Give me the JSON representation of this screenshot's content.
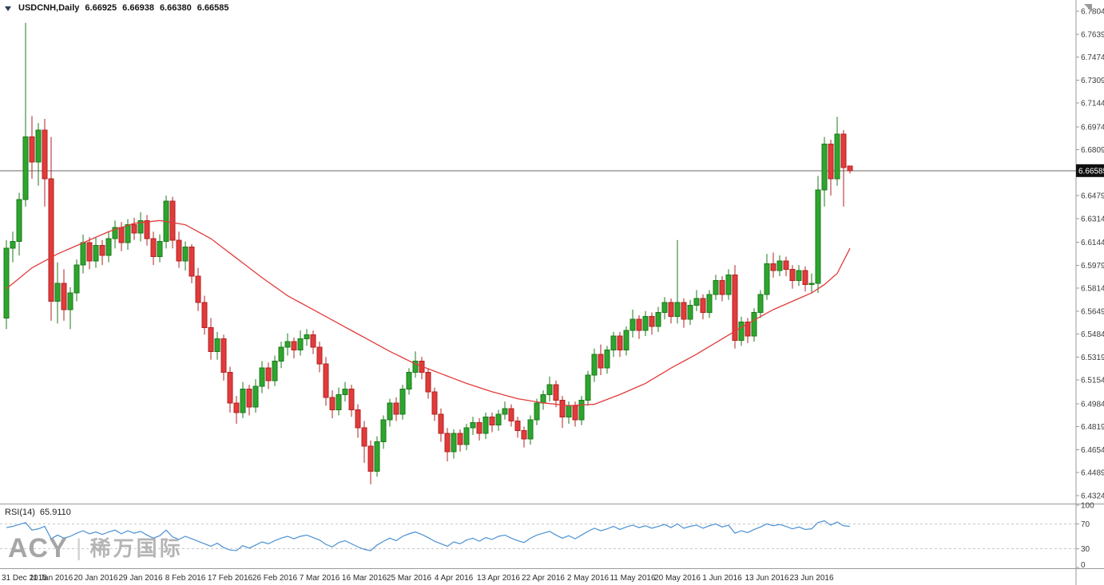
{
  "header": {
    "symbol": "USDCNH,Daily",
    "open": "6.66925",
    "high": "6.66938",
    "low": "6.66380",
    "close": "6.66585"
  },
  "rsi_header": {
    "label": "RSI(14)",
    "value": "65.9110"
  },
  "watermark": {
    "brand": "ACY",
    "separator": "|",
    "cn": "稀万国际"
  },
  "chart_data": {
    "type": "candlestick",
    "title": "USDCNH Daily",
    "symbol": "USDCNH",
    "timeframe": "Daily",
    "legend_position": "none",
    "grid": false,
    "x_labels": [
      "31 Dec 2015",
      "11 Jan 2016",
      "20 Jan 2016",
      "29 Jan 2016",
      "8 Feb 2016",
      "17 Feb 2016",
      "26 Feb 2016",
      "7 Mar 2016",
      "16 Mar 2016",
      "25 Mar 2016",
      "4 Apr 2016",
      "13 Apr 2016",
      "22 Apr 2016",
      "2 May 2016",
      "11 May 2016",
      "20 May 2016",
      "1 Jun 2016",
      "13 Jun 2016",
      "23 Jun 2016"
    ],
    "label_step": 7,
    "y_axis": {
      "min": 6.4324,
      "max": 6.7804,
      "tick_labels": [
        "6.78040",
        "6.76390",
        "6.74740",
        "6.73090",
        "6.71440",
        "6.69740",
        "6.68090",
        "6.64790",
        "6.63140",
        "6.61440",
        "6.59790",
        "6.58140",
        "6.56490",
        "6.54840",
        "6.53190",
        "6.51540",
        "6.49840",
        "6.48190",
        "6.46540",
        "6.44890",
        "6.43240"
      ]
    },
    "current_price": 6.66585,
    "candles": [
      [
        6.56,
        6.616,
        6.552,
        6.61
      ],
      [
        6.61,
        6.622,
        6.6,
        6.615
      ],
      [
        6.615,
        6.65,
        6.605,
        6.645
      ],
      [
        6.645,
        6.772,
        6.64,
        6.69
      ],
      [
        6.69,
        6.705,
        6.66,
        6.672
      ],
      [
        6.672,
        6.7,
        6.655,
        6.695
      ],
      [
        6.695,
        6.703,
        6.64,
        6.66
      ],
      [
        6.66,
        6.69,
        6.558,
        6.572
      ],
      [
        6.572,
        6.6,
        6.556,
        6.585
      ],
      [
        6.585,
        6.595,
        6.558,
        6.566
      ],
      [
        6.566,
        6.582,
        6.552,
        6.578
      ],
      [
        6.578,
        6.602,
        6.572,
        6.598
      ],
      [
        6.598,
        6.62,
        6.592,
        6.614
      ],
      [
        6.614,
        6.618,
        6.595,
        6.601
      ],
      [
        6.601,
        6.618,
        6.596,
        6.612
      ],
      [
        6.612,
        6.616,
        6.598,
        6.605
      ],
      [
        6.605,
        6.622,
        6.6,
        6.617
      ],
      [
        6.617,
        6.63,
        6.61,
        6.625
      ],
      [
        6.625,
        6.629,
        6.608,
        6.614
      ],
      [
        6.614,
        6.631,
        6.609,
        6.627
      ],
      [
        6.627,
        6.632,
        6.616,
        6.621
      ],
      [
        6.621,
        6.636,
        6.615,
        6.63
      ],
      [
        6.63,
        6.634,
        6.612,
        6.617
      ],
      [
        6.617,
        6.622,
        6.598,
        6.604
      ],
      [
        6.604,
        6.62,
        6.6,
        6.615
      ],
      [
        6.615,
        6.648,
        6.61,
        6.644
      ],
      [
        6.644,
        6.647,
        6.61,
        6.616
      ],
      [
        6.616,
        6.622,
        6.596,
        6.601
      ],
      [
        6.601,
        6.615,
        6.594,
        6.611
      ],
      [
        6.611,
        6.613,
        6.585,
        6.59
      ],
      [
        6.59,
        6.596,
        6.565,
        6.571
      ],
      [
        6.571,
        6.576,
        6.548,
        6.553
      ],
      [
        6.553,
        6.56,
        6.53,
        6.536
      ],
      [
        6.536,
        6.55,
        6.53,
        6.545
      ],
      [
        6.545,
        6.548,
        6.515,
        6.521
      ],
      [
        6.521,
        6.525,
        6.492,
        6.499
      ],
      [
        6.499,
        6.504,
        6.484,
        6.492
      ],
      [
        6.492,
        6.514,
        6.488,
        6.509
      ],
      [
        6.509,
        6.512,
        6.49,
        6.496
      ],
      [
        6.496,
        6.516,
        6.492,
        6.511
      ],
      [
        6.511,
        6.529,
        6.506,
        6.524
      ],
      [
        6.524,
        6.528,
        6.509,
        6.515
      ],
      [
        6.515,
        6.533,
        6.511,
        6.529
      ],
      [
        6.529,
        6.543,
        6.524,
        6.539
      ],
      [
        6.539,
        6.549,
        6.533,
        6.543
      ],
      [
        6.543,
        6.546,
        6.531,
        6.537
      ],
      [
        6.537,
        6.551,
        6.533,
        6.545
      ],
      [
        6.545,
        6.552,
        6.54,
        6.548
      ],
      [
        6.548,
        6.551,
        6.534,
        6.539
      ],
      [
        6.539,
        6.543,
        6.521,
        6.527
      ],
      [
        6.527,
        6.532,
        6.497,
        6.503
      ],
      [
        6.503,
        6.508,
        6.488,
        6.494
      ],
      [
        6.494,
        6.51,
        6.49,
        6.505
      ],
      [
        6.505,
        6.514,
        6.5,
        6.509
      ],
      [
        6.509,
        6.512,
        6.489,
        6.494
      ],
      [
        6.494,
        6.498,
        6.474,
        6.481
      ],
      [
        6.481,
        6.486,
        6.456,
        6.468
      ],
      [
        6.468,
        6.472,
        6.4405,
        6.45
      ],
      [
        6.45,
        6.475,
        6.446,
        6.471
      ],
      [
        6.471,
        6.49,
        6.466,
        6.487
      ],
      [
        6.487,
        6.502,
        6.482,
        6.499
      ],
      [
        6.499,
        6.503,
        6.486,
        6.491
      ],
      [
        6.491,
        6.512,
        6.487,
        6.509
      ],
      [
        6.509,
        6.524,
        6.505,
        6.521
      ],
      [
        6.521,
        6.536,
        6.517,
        6.529
      ],
      [
        6.529,
        6.532,
        6.516,
        6.521
      ],
      [
        6.521,
        6.524,
        6.502,
        6.507
      ],
      [
        6.507,
        6.51,
        6.486,
        6.491
      ],
      [
        6.491,
        6.495,
        6.471,
        6.477
      ],
      [
        6.477,
        6.481,
        6.457,
        6.464
      ],
      [
        6.464,
        6.48,
        6.459,
        6.477
      ],
      [
        6.477,
        6.48,
        6.464,
        6.469
      ],
      [
        6.469,
        6.484,
        6.465,
        6.481
      ],
      [
        6.481,
        6.489,
        6.476,
        6.485
      ],
      [
        6.485,
        6.488,
        6.472,
        6.477
      ],
      [
        6.477,
        6.492,
        6.473,
        6.489
      ],
      [
        6.489,
        6.492,
        6.478,
        6.483
      ],
      [
        6.483,
        6.494,
        6.479,
        6.491
      ],
      [
        6.491,
        6.5,
        6.487,
        6.495
      ],
      [
        6.495,
        6.498,
        6.482,
        6.486
      ],
      [
        6.486,
        6.489,
        6.474,
        6.479
      ],
      [
        6.479,
        6.482,
        6.467,
        6.473
      ],
      [
        6.473,
        6.49,
        6.469,
        6.487
      ],
      [
        6.487,
        6.502,
        6.483,
        6.499
      ],
      [
        6.499,
        6.508,
        6.494,
        6.505
      ],
      [
        6.505,
        6.518,
        6.5,
        6.512
      ],
      [
        6.512,
        6.515,
        6.496,
        6.501
      ],
      [
        6.501,
        6.504,
        6.481,
        6.489
      ],
      [
        6.489,
        6.5,
        6.484,
        6.497
      ],
      [
        6.497,
        6.5,
        6.482,
        6.487
      ],
      [
        6.487,
        6.504,
        6.483,
        6.501
      ],
      [
        6.501,
        6.522,
        6.497,
        6.519
      ],
      [
        6.519,
        6.538,
        6.514,
        6.534
      ],
      [
        6.534,
        6.541,
        6.519,
        6.524
      ],
      [
        6.524,
        6.54,
        6.52,
        6.537
      ],
      [
        6.537,
        6.55,
        6.532,
        6.547
      ],
      [
        6.547,
        6.55,
        6.532,
        6.537
      ],
      [
        6.537,
        6.554,
        6.533,
        6.551
      ],
      [
        6.551,
        6.566,
        6.546,
        6.559
      ],
      [
        6.559,
        6.562,
        6.545,
        6.551
      ],
      [
        6.551,
        6.565,
        6.547,
        6.561
      ],
      [
        6.561,
        6.564,
        6.548,
        6.554
      ],
      [
        6.554,
        6.568,
        6.55,
        6.564
      ],
      [
        6.564,
        6.575,
        6.559,
        6.571
      ],
      [
        6.571,
        6.574,
        6.556,
        6.561
      ],
      [
        6.561,
        6.616,
        6.556,
        6.571
      ],
      [
        6.571,
        6.574,
        6.553,
        6.559
      ],
      [
        6.559,
        6.573,
        6.555,
        6.569
      ],
      [
        6.569,
        6.58,
        6.565,
        6.574
      ],
      [
        6.574,
        6.577,
        6.559,
        6.564
      ],
      [
        6.564,
        6.58,
        6.56,
        6.577
      ],
      [
        6.577,
        6.591,
        6.573,
        6.587
      ],
      [
        6.587,
        6.59,
        6.572,
        6.577
      ],
      [
        6.577,
        6.595,
        6.573,
        6.591
      ],
      [
        6.591,
        6.598,
        6.538,
        6.544
      ],
      [
        6.544,
        6.561,
        6.54,
        6.557
      ],
      [
        6.557,
        6.56,
        6.542,
        6.547
      ],
      [
        6.547,
        6.567,
        6.543,
        6.564
      ],
      [
        6.564,
        6.58,
        6.56,
        6.577
      ],
      [
        6.577,
        6.606,
        6.573,
        6.599
      ],
      [
        6.599,
        6.607,
        6.589,
        6.594
      ],
      [
        6.594,
        6.605,
        6.59,
        6.601
      ],
      [
        6.601,
        6.604,
        6.59,
        6.595
      ],
      [
        6.595,
        6.598,
        6.581,
        6.587
      ],
      [
        6.587,
        6.598,
        6.583,
        6.594
      ],
      [
        6.594,
        6.597,
        6.579,
        6.584
      ],
      [
        6.584,
        6.592,
        6.578,
        6.585
      ],
      [
        6.585,
        6.662,
        6.578,
        6.652
      ],
      [
        6.652,
        6.69,
        6.64,
        6.685
      ],
      [
        6.685,
        6.688,
        6.648,
        6.66
      ],
      [
        6.66,
        6.7045,
        6.655,
        6.692
      ],
      [
        6.692,
        6.695,
        6.64,
        6.668
      ],
      [
        6.66925,
        6.66938,
        6.6638,
        6.66585
      ]
    ],
    "ma_line": {
      "name": "moving-average",
      "points": [
        [
          0,
          6.581
        ],
        [
          4,
          6.596
        ],
        [
          8,
          6.606
        ],
        [
          12,
          6.614
        ],
        [
          16,
          6.622
        ],
        [
          20,
          6.628
        ],
        [
          24,
          6.63
        ],
        [
          28,
          6.627
        ],
        [
          32,
          6.617
        ],
        [
          36,
          6.603
        ],
        [
          40,
          6.589
        ],
        [
          44,
          6.576
        ],
        [
          48,
          6.566
        ],
        [
          52,
          6.556
        ],
        [
          56,
          6.546
        ],
        [
          60,
          6.536
        ],
        [
          64,
          6.527
        ],
        [
          68,
          6.52
        ],
        [
          72,
          6.513
        ],
        [
          76,
          6.507
        ],
        [
          80,
          6.502
        ],
        [
          84,
          6.499
        ],
        [
          88,
          6.497
        ],
        [
          92,
          6.498
        ],
        [
          96,
          6.505
        ],
        [
          100,
          6.513
        ],
        [
          104,
          6.524
        ],
        [
          108,
          6.534
        ],
        [
          112,
          6.545
        ],
        [
          116,
          6.556
        ],
        [
          120,
          6.566
        ],
        [
          124,
          6.574
        ],
        [
          126,
          6.578
        ],
        [
          128,
          6.584
        ],
        [
          130,
          6.592
        ],
        [
          132,
          6.61
        ]
      ]
    },
    "rsi": {
      "period": 14,
      "current": 65.911,
      "scale_labels": [
        100,
        70,
        30,
        0
      ],
      "dashed_levels": [
        70,
        30
      ],
      "values": [
        64,
        66,
        69,
        72,
        60,
        62,
        66,
        46,
        52,
        47,
        50,
        55,
        59,
        54,
        57,
        53,
        57,
        60,
        54,
        59,
        55,
        58,
        52,
        47,
        51,
        60,
        49,
        45,
        50,
        46,
        42,
        38,
        34,
        39,
        32,
        28,
        27,
        35,
        31,
        36,
        41,
        38,
        43,
        47,
        50,
        46,
        50,
        52,
        48,
        44,
        37,
        33,
        40,
        43,
        38,
        33,
        29,
        27,
        36,
        42,
        47,
        43,
        50,
        54,
        57,
        53,
        48,
        42,
        38,
        34,
        41,
        38,
        44,
        47,
        42,
        48,
        45,
        50,
        52,
        47,
        43,
        40,
        47,
        52,
        55,
        58,
        52,
        47,
        51,
        46,
        52,
        58,
        63,
        59,
        62,
        66,
        61,
        65,
        68,
        64,
        67,
        63,
        66,
        69,
        64,
        70,
        63,
        66,
        68,
        63,
        67,
        70,
        65,
        68,
        55,
        59,
        56,
        61,
        65,
        70,
        67,
        69,
        66,
        62,
        65,
        61,
        62,
        72,
        75,
        68,
        73,
        67,
        65.91
      ]
    },
    "colors": {
      "up_fill": "#2EA52E",
      "up_stroke": "#1B7A1B",
      "down_fill": "#E23B3B",
      "down_stroke": "#B22222",
      "ma": "#E23B3B",
      "rsi": "#4A90D2",
      "bid_line": "#6a6a6a",
      "frame": "#9a9a9a",
      "tag_bg": "#101010",
      "tag_text": "#ffffff"
    }
  }
}
